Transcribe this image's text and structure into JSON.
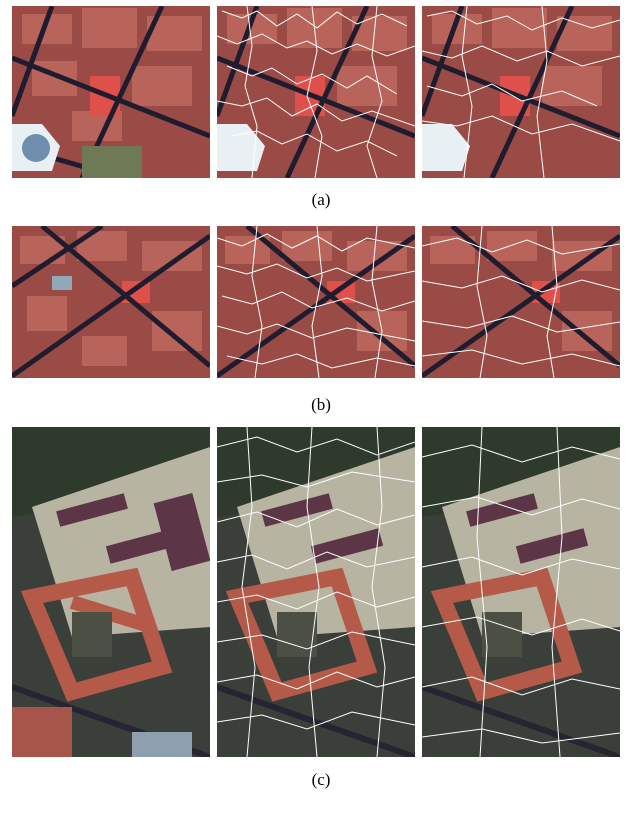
{
  "figure": {
    "captions": {
      "a": "(a)",
      "b": "(b)",
      "c": "(c)"
    },
    "panels": [
      {
        "row": "a",
        "variant": "original",
        "icon": "aerial-rooftops-image"
      },
      {
        "row": "a",
        "variant": "segmentation-1",
        "icon": "superpixel-overlay-image"
      },
      {
        "row": "a",
        "variant": "segmentation-2",
        "icon": "superpixel-overlay-image"
      },
      {
        "row": "b",
        "variant": "original",
        "icon": "aerial-rooftops-image"
      },
      {
        "row": "b",
        "variant": "segmentation-1",
        "icon": "superpixel-overlay-image"
      },
      {
        "row": "b",
        "variant": "segmentation-2",
        "icon": "superpixel-overlay-image"
      },
      {
        "row": "c",
        "variant": "original",
        "icon": "aerial-buildings-image"
      },
      {
        "row": "c",
        "variant": "segmentation-1",
        "icon": "superpixel-overlay-image"
      },
      {
        "row": "c",
        "variant": "segmentation-2",
        "icon": "superpixel-overlay-image"
      }
    ],
    "colors": {
      "roof_red": "#b45a4e",
      "roof_dark": "#5a2f33",
      "street": "#1f1c30",
      "boundary": "#ffffff",
      "grass": "#6d7a55"
    }
  }
}
